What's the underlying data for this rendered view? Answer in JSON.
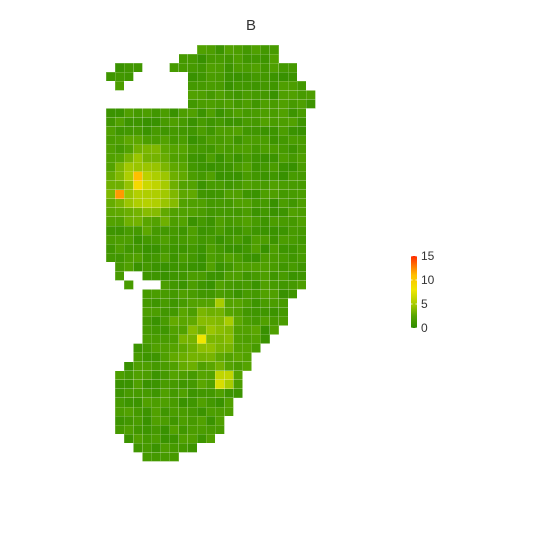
{
  "chart_data": {
    "type": "heatmap",
    "title": "B",
    "xlabel": "",
    "ylabel": "",
    "legend": {
      "placement": "right",
      "min": 0,
      "max": 15,
      "ticks": [
        0,
        5,
        10,
        15
      ],
      "tick_labels": [
        "0",
        "5",
        "10",
        "15"
      ]
    },
    "color_scale": {
      "stops": [
        {
          "value": 0,
          "color": "#2e8b00"
        },
        {
          "value": 2.5,
          "color": "#56a400"
        },
        {
          "value": 5,
          "color": "#a8cc00"
        },
        {
          "value": 8,
          "color": "#f0e600"
        },
        {
          "value": 11,
          "color": "#ffbf00"
        },
        {
          "value": 15,
          "color": "#ff2a00"
        }
      ]
    },
    "grid": {
      "columns": 33,
      "rows": 51,
      "row_spans": [
        [
          [
            10,
            18
          ]
        ],
        [
          [
            8,
            18
          ]
        ],
        [
          [
            1,
            3
          ],
          [
            7,
            20
          ]
        ],
        [
          [
            0,
            2
          ],
          [
            9,
            20
          ]
        ],
        [
          [
            1,
            1
          ],
          [
            9,
            21
          ]
        ],
        [
          [
            9,
            22
          ]
        ],
        [
          [
            9,
            22
          ]
        ],
        [
          [
            0,
            21
          ]
        ],
        [
          [
            0,
            21
          ]
        ],
        [
          [
            0,
            21
          ]
        ],
        [
          [
            0,
            21
          ]
        ],
        [
          [
            0,
            21
          ]
        ],
        [
          [
            0,
            21
          ]
        ],
        [
          [
            0,
            21
          ]
        ],
        [
          [
            0,
            21
          ]
        ],
        [
          [
            0,
            21
          ]
        ],
        [
          [
            0,
            21
          ]
        ],
        [
          [
            0,
            21
          ]
        ],
        [
          [
            0,
            21
          ]
        ],
        [
          [
            0,
            21
          ]
        ],
        [
          [
            0,
            21
          ]
        ],
        [
          [
            0,
            21
          ]
        ],
        [
          [
            0,
            21
          ]
        ],
        [
          [
            0,
            21
          ]
        ],
        [
          [
            1,
            21
          ]
        ],
        [
          [
            1,
            1
          ],
          [
            4,
            21
          ]
        ],
        [
          [
            2,
            2
          ],
          [
            6,
            21
          ]
        ],
        [
          [
            4,
            20
          ]
        ],
        [
          [
            4,
            19
          ]
        ],
        [
          [
            4,
            19
          ]
        ],
        [
          [
            4,
            19
          ]
        ],
        [
          [
            4,
            18
          ]
        ],
        [
          [
            4,
            17
          ]
        ],
        [
          [
            3,
            16
          ]
        ],
        [
          [
            3,
            15
          ]
        ],
        [
          [
            2,
            15
          ]
        ],
        [
          [
            1,
            14
          ]
        ],
        [
          [
            1,
            14
          ]
        ],
        [
          [
            1,
            14
          ]
        ],
        [
          [
            1,
            13
          ]
        ],
        [
          [
            1,
            13
          ]
        ],
        [
          [
            1,
            12
          ]
        ],
        [
          [
            1,
            12
          ]
        ],
        [
          [
            2,
            11
          ]
        ],
        [
          [
            3,
            9
          ]
        ],
        [
          [
            4,
            7
          ]
        ]
      ],
      "hotspots": [
        {
          "col": 3,
          "row": 14,
          "value": 11
        },
        {
          "col": 1,
          "row": 16,
          "value": 12
        },
        {
          "col": 3,
          "row": 15,
          "value": 9
        },
        {
          "col": 10,
          "row": 32,
          "value": 8
        },
        {
          "col": 12,
          "row": 36,
          "value": 6
        },
        {
          "col": 13,
          "row": 36,
          "value": 6
        },
        {
          "col": 12,
          "row": 37,
          "value": 7
        },
        {
          "col": 13,
          "row": 37,
          "value": 5
        },
        {
          "col": 23,
          "row": 23,
          "value": 5
        },
        {
          "col": 17,
          "row": 34,
          "value": 5
        },
        {
          "col": 13,
          "row": 30,
          "value": 5
        },
        {
          "col": 12,
          "row": 28,
          "value": 5
        },
        {
          "col": 9,
          "row": 31,
          "value": 4
        },
        {
          "col": 10,
          "row": 30,
          "value": 4
        },
        {
          "col": 11,
          "row": 30,
          "value": 4
        }
      ],
      "gradient_blobs": [
        {
          "col": 4,
          "row": 15,
          "radius": 6,
          "peak": 5
        },
        {
          "col": 11,
          "row": 32,
          "radius": 6,
          "peak": 3
        }
      ]
    }
  }
}
